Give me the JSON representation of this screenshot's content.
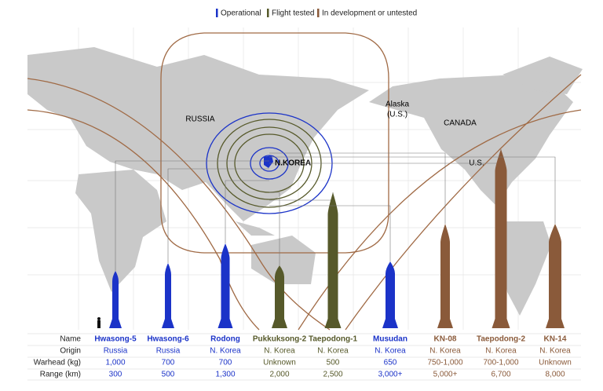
{
  "legend": [
    {
      "label": "Operational",
      "color": "#1b33c8"
    },
    {
      "label": "Flight tested",
      "color": "#56592a"
    },
    {
      "label": "In development or untested",
      "color": "#8a5a3a"
    }
  ],
  "map_labels": {
    "russia": "RUSSIA",
    "alaska": [
      "Alaska",
      "(U.S.)"
    ],
    "canada": "CANADA",
    "us": "U.S.",
    "north_korea": "N.KOREA"
  },
  "table": {
    "row_labels": [
      "Name",
      "Origin",
      "Warhead (kg)",
      "Range (km)"
    ],
    "missiles": [
      {
        "name": "Hwasong-5",
        "origin": "Russia",
        "warhead": "1,000",
        "range": "300",
        "color": "#1b33c8"
      },
      {
        "name": "Hwasong-6",
        "origin": "Russia",
        "warhead": "700",
        "range": "500",
        "color": "#1b33c8"
      },
      {
        "name": "Rodong",
        "origin": "N. Korea",
        "warhead": "700",
        "range": "1,300",
        "color": "#1b33c8"
      },
      {
        "name": "Pukkuksong-2",
        "origin": "N. Korea",
        "warhead": "Unknown",
        "range": "2,000",
        "color": "#56592a"
      },
      {
        "name": "Taepodong-1",
        "origin": "N. Korea",
        "warhead": "500",
        "range": "2,500",
        "color": "#56592a"
      },
      {
        "name": "Musudan",
        "origin": "N. Korea",
        "warhead": "650",
        "range": "3,000+",
        "color": "#1b33c8"
      },
      {
        "name": "KN-08",
        "origin": "N. Korea",
        "warhead": "750-1,000",
        "range": "5,000+",
        "color": "#8a5a3a"
      },
      {
        "name": "Taepodong-2",
        "origin": "N. Korea",
        "warhead": "700-1,000",
        "range": "6,700",
        "color": "#8a5a3a"
      },
      {
        "name": "KN-14",
        "origin": "N. Korea",
        "warhead": "Unknown",
        "range": "8,000",
        "color": "#8a5a3a"
      }
    ]
  }
}
